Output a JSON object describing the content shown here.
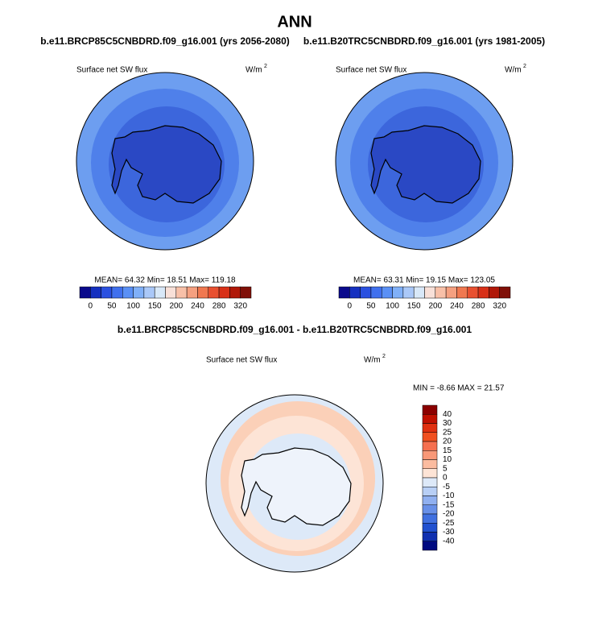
{
  "title": "ANN",
  "panels": [
    {
      "case": "b.e11.BRCP85C5CNBDRD.f09_g16.001 (yrs 2056-2080)",
      "variable": "Surface net SW flux",
      "units": "W/m",
      "units_exp": "2",
      "stats": "MEAN=  64.32   Min=  18.51   Max= 119.18"
    },
    {
      "case": "b.e11.B20TRC5CNBDRD.f09_g16.001 (yrs 1981-2005)",
      "variable": "Surface net SW flux",
      "units": "W/m",
      "units_exp": "2",
      "stats": "MEAN=  63.31   Min=  19.15   Max= 123.05"
    }
  ],
  "colorbar": {
    "colors": [
      "#0a0a8c",
      "#1530c0",
      "#2a50e0",
      "#4070ee",
      "#5a90f5",
      "#80b0f8",
      "#aac8f8",
      "#d8e8f8",
      "#f8e0d8",
      "#f8c0a8",
      "#f5a080",
      "#f07850",
      "#e85030",
      "#d83018",
      "#b01808",
      "#801008"
    ],
    "labels": [
      0,
      50,
      100,
      150,
      200,
      240,
      280,
      320
    ]
  },
  "difference": {
    "title": "b.e11.BRCP85C5CNBDRD.f09_g16.001 - b.e11.B20TRC5CNBDRD.f09_g16.001",
    "variable": "Surface net SW flux",
    "units": "W/m",
    "units_exp": "2",
    "stats": "MIN =  -8.66  MAX =  21.57",
    "colors": [
      "#8b0000",
      "#c01000",
      "#e03010",
      "#f05020",
      "#f57050",
      "#f89878",
      "#fbbca0",
      "#fde4d6",
      "#dde9f8",
      "#b8cff5",
      "#90b0f0",
      "#6890e8",
      "#4070e0",
      "#2050d0",
      "#1030b0",
      "#000a80"
    ],
    "labels": [
      40,
      30,
      25,
      20,
      15,
      10,
      5,
      0,
      -5,
      -10,
      -15,
      -20,
      -25,
      -30,
      -40
    ]
  }
}
